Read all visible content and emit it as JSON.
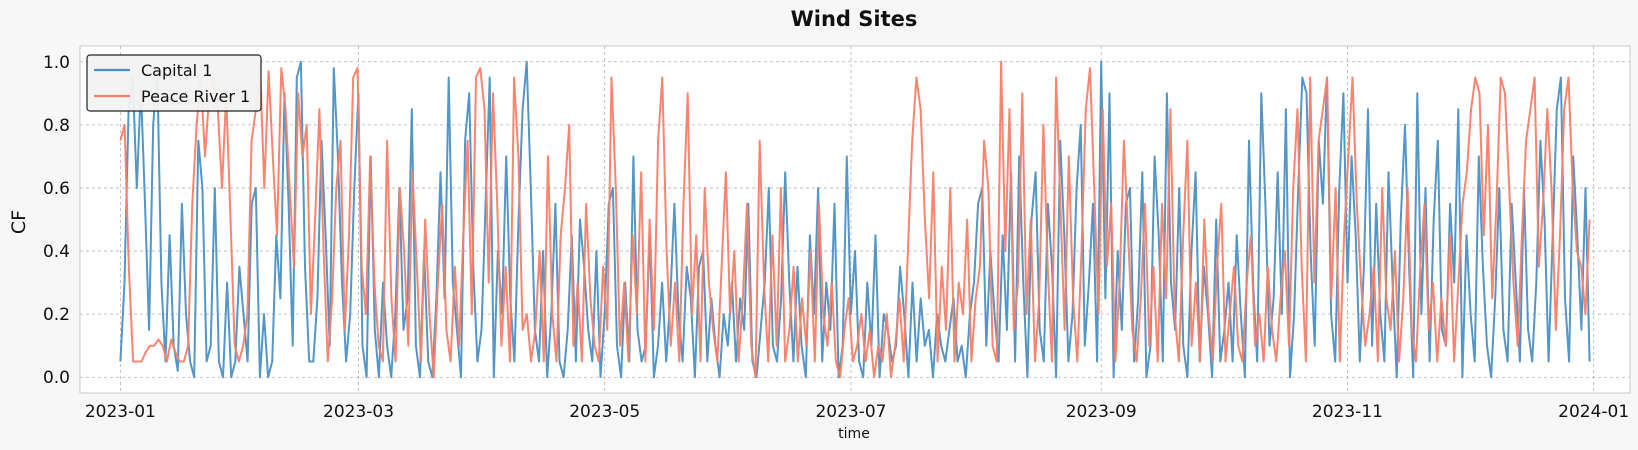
{
  "chart_data": {
    "type": "line",
    "title": "Wind Sites",
    "xlabel": "time",
    "ylabel": "CF",
    "x_range": [
      "2022-12-22",
      "2024-01-10"
    ],
    "ylim": [
      -0.05,
      1.05
    ],
    "x_ticks": [
      "2023-01",
      "2023-03",
      "2023-05",
      "2023-07",
      "2023-09",
      "2023-11",
      "2024-01"
    ],
    "y_ticks": [
      "0.0",
      "0.2",
      "0.4",
      "0.6",
      "0.8",
      "1.0"
    ],
    "grid": true,
    "legend_position": "top-left",
    "series": [
      {
        "name": "Capital 1",
        "color": "#4a90c4",
        "x_start": "2023-01-01",
        "x_end": "2023-12-31",
        "values": [
          0.05,
          0.3,
          0.85,
          0.95,
          0.6,
          0.92,
          0.55,
          0.15,
          0.8,
          0.97,
          0.3,
          0.05,
          0.45,
          0.1,
          0.02,
          0.55,
          0.2,
          0.05,
          0.0,
          0.75,
          0.6,
          0.05,
          0.1,
          0.6,
          0.05,
          0.0,
          0.3,
          0.0,
          0.05,
          0.35,
          0.2,
          0.05,
          0.55,
          0.6,
          0.0,
          0.2,
          0.0,
          0.05,
          0.45,
          0.25,
          0.9,
          0.55,
          0.1,
          0.95,
          1.0,
          0.35,
          0.05,
          0.05,
          0.25,
          0.75,
          0.45,
          0.1,
          0.98,
          0.7,
          0.3,
          0.05,
          0.2,
          0.6,
          0.9,
          0.1,
          0.0,
          0.7,
          0.15,
          0.0,
          0.3,
          0.1,
          0.0,
          0.2,
          0.6,
          0.15,
          0.25,
          0.85,
          0.1,
          0.0,
          0.4,
          0.05,
          0.0,
          0.25,
          0.65,
          0.25,
          0.95,
          0.3,
          0.15,
          0.0,
          0.75,
          0.9,
          0.35,
          0.05,
          0.15,
          0.55,
          0.95,
          0.0,
          0.4,
          0.2,
          0.7,
          0.25,
          0.05,
          0.5,
          0.85,
          1.0,
          0.6,
          0.15,
          0.05,
          0.4,
          0.0,
          0.2,
          0.55,
          0.05,
          0.0,
          0.15,
          0.45,
          0.05,
          0.5,
          0.35,
          0.15,
          0.05,
          0.4,
          0.0,
          0.2,
          0.55,
          0.6,
          0.1,
          0.0,
          0.3,
          0.05,
          0.7,
          0.15,
          0.05,
          0.1,
          0.45,
          0.0,
          0.1,
          0.3,
          0.05,
          0.25,
          0.55,
          0.2,
          0.05,
          0.35,
          0.25,
          0.0,
          0.35,
          0.4,
          0.05,
          0.25,
          0.1,
          0.0,
          0.2,
          0.1,
          0.3,
          0.05,
          0.25,
          0.15,
          0.55,
          0.05,
          0.0,
          0.15,
          0.3,
          0.6,
          0.1,
          0.05,
          0.25,
          0.65,
          0.3,
          0.05,
          0.35,
          0.1,
          0.0,
          0.45,
          0.2,
          0.6,
          0.05,
          0.3,
          0.15,
          0.55,
          0.0,
          0.1,
          0.7,
          0.2,
          0.4,
          0.05,
          0.0,
          0.3,
          0.1,
          0.45,
          0.0,
          0.2,
          0.15,
          0.05,
          0.1,
          0.35,
          0.2,
          0.0,
          0.3,
          0.05,
          0.25,
          0.1,
          0.15,
          0.0,
          0.2,
          0.1,
          0.05,
          0.15,
          0.25,
          0.05,
          0.1,
          0.0,
          0.2,
          0.3,
          0.55,
          0.6,
          0.1,
          0.4,
          0.2,
          0.05,
          0.45,
          0.15,
          0.65,
          0.05,
          0.7,
          0.3,
          0.0,
          0.5,
          0.65,
          0.15,
          0.05,
          0.55,
          0.35,
          0.0,
          0.75,
          0.45,
          0.05,
          0.2,
          0.6,
          0.8,
          0.1,
          0.3,
          0.55,
          0.05,
          1.0,
          0.25,
          0.9,
          0.0,
          0.4,
          0.15,
          0.55,
          0.6,
          0.05,
          0.25,
          0.65,
          0.0,
          0.1,
          0.7,
          0.45,
          0.05,
          0.9,
          0.3,
          0.15,
          0.6,
          0.1,
          0.0,
          0.4,
          0.65,
          0.05,
          0.35,
          0.2,
          0.0,
          0.5,
          0.05,
          0.15,
          0.3,
          0.05,
          0.45,
          0.2,
          0.0,
          0.75,
          0.3,
          0.05,
          0.9,
          0.55,
          0.1,
          0.25,
          0.65,
          0.2,
          0.85,
          0.0,
          0.2,
          0.6,
          0.95,
          0.9,
          0.4,
          0.1,
          0.75,
          0.55,
          0.95,
          0.2,
          0.05,
          0.6,
          0.9,
          0.3,
          0.7,
          0.45,
          0.05,
          0.35,
          0.85,
          0.1,
          0.55,
          0.2,
          0.05,
          0.65,
          0.3,
          0.0,
          0.5,
          0.8,
          0.35,
          0.0,
          0.9,
          0.2,
          0.6,
          0.05,
          0.5,
          0.75,
          0.15,
          0.1,
          0.55,
          0.3,
          0.85,
          0.0,
          0.45,
          0.2,
          0.05,
          0.7,
          0.35,
          0.1,
          0.0,
          0.25,
          0.6,
          0.15,
          0.05,
          0.55,
          0.3,
          0.05,
          0.6,
          0.15,
          0.05,
          0.3,
          0.75,
          0.5,
          0.05,
          0.45,
          0.85,
          0.95,
          0.25,
          0.05,
          0.7,
          0.45,
          0.15,
          0.6,
          0.05
        ]
      },
      {
        "name": "Peace River 1",
        "color": "#f97e68",
        "x_start": "2023-01-01",
        "x_end": "2023-12-31",
        "values": [
          0.75,
          0.8,
          0.35,
          0.05,
          0.05,
          0.05,
          0.08,
          0.1,
          0.1,
          0.12,
          0.1,
          0.05,
          0.12,
          0.08,
          0.05,
          0.05,
          0.1,
          0.55,
          0.8,
          0.95,
          0.7,
          0.9,
          0.95,
          0.85,
          0.6,
          0.9,
          0.5,
          0.1,
          0.05,
          0.1,
          0.2,
          0.75,
          0.85,
          0.98,
          0.6,
          0.97,
          0.7,
          0.45,
          0.98,
          0.85,
          0.6,
          0.35,
          0.9,
          0.7,
          0.8,
          0.2,
          0.5,
          0.85,
          0.4,
          0.05,
          0.25,
          0.6,
          0.75,
          0.15,
          0.45,
          0.95,
          0.98,
          0.35,
          0.2,
          0.7,
          0.3,
          0.1,
          0.05,
          0.75,
          0.25,
          0.05,
          0.6,
          0.4,
          0.1,
          0.65,
          0.35,
          0.05,
          0.5,
          0.2,
          0.0,
          0.3,
          0.55,
          0.15,
          0.05,
          0.35,
          0.1,
          0.45,
          0.75,
          0.2,
          0.95,
          0.98,
          0.85,
          0.3,
          0.9,
          0.55,
          0.1,
          0.35,
          0.05,
          0.95,
          0.7,
          0.15,
          0.2,
          0.05,
          0.15,
          0.4,
          0.05,
          0.7,
          0.2,
          0.05,
          0.45,
          0.6,
          0.8,
          0.1,
          0.3,
          0.05,
          0.55,
          0.25,
          0.1,
          0.05,
          0.35,
          0.15,
          0.95,
          0.6,
          0.1,
          0.3,
          0.05,
          0.45,
          0.2,
          0.65,
          0.05,
          0.5,
          0.15,
          0.75,
          0.95,
          0.4,
          0.1,
          0.3,
          0.05,
          0.55,
          0.9,
          0.2,
          0.45,
          0.05,
          0.6,
          0.3,
          0.15,
          0.05,
          0.35,
          0.65,
          0.2,
          0.4,
          0.05,
          0.25,
          0.55,
          0.1,
          0.0,
          0.75,
          0.3,
          0.05,
          0.45,
          0.1,
          0.6,
          0.05,
          0.15,
          0.35,
          0.05,
          0.25,
          0.1,
          0.4,
          0.05,
          0.55,
          0.2,
          0.1,
          0.3,
          0.05,
          0.0,
          0.15,
          0.25,
          0.05,
          0.1,
          0.2,
          0.05,
          0.15,
          0.0,
          0.1,
          0.05,
          0.2,
          0.0,
          0.1,
          0.25,
          0.05,
          0.4,
          0.75,
          0.95,
          0.85,
          0.5,
          0.25,
          0.65,
          0.05,
          0.35,
          0.15,
          0.6,
          0.05,
          0.3,
          0.2,
          0.5,
          0.05,
          0.25,
          0.35,
          0.75,
          0.6,
          0.1,
          0.05,
          1.0,
          0.4,
          0.85,
          0.15,
          0.3,
          0.9,
          0.2,
          0.5,
          0.05,
          0.25,
          0.8,
          0.35,
          0.05,
          0.95,
          0.55,
          0.15,
          0.7,
          0.25,
          0.05,
          0.4,
          0.85,
          0.98,
          0.6,
          0.2,
          0.85,
          0.35,
          0.55,
          0.05,
          0.3,
          0.75,
          0.45,
          0.15,
          0.05,
          0.25,
          0.55,
          0.1,
          0.35,
          0.05,
          0.55,
          0.25,
          0.85,
          0.2,
          0.05,
          0.45,
          0.75,
          0.1,
          0.3,
          0.05,
          0.5,
          0.2,
          0.05,
          0.35,
          0.55,
          0.05,
          0.2,
          0.35,
          0.1,
          0.05,
          0.3,
          0.45,
          0.1,
          0.2,
          0.05,
          0.35,
          0.15,
          0.05,
          0.25,
          0.4,
          0.1,
          0.6,
          0.85,
          0.35,
          0.05,
          0.95,
          0.3,
          0.75,
          0.85,
          0.95,
          0.25,
          0.6,
          0.05,
          0.45,
          0.7,
          0.95,
          0.55,
          0.3,
          0.1,
          0.2,
          0.35,
          0.05,
          0.6,
          0.25,
          0.15,
          0.4,
          0.05,
          0.25,
          0.6,
          0.15,
          0.05,
          0.35,
          0.55,
          0.15,
          0.3,
          0.05,
          0.25,
          0.1,
          0.45,
          0.05,
          0.3,
          0.55,
          0.65,
          0.85,
          0.95,
          0.9,
          0.45,
          0.8,
          0.25,
          0.55,
          0.95,
          0.9,
          0.6,
          0.3,
          0.1,
          0.45,
          0.75,
          0.85,
          0.95,
          0.35,
          0.55,
          0.85,
          0.6,
          0.15,
          0.45,
          0.85,
          0.95,
          0.6,
          0.4,
          0.35,
          0.2,
          0.5
        ]
      }
    ]
  }
}
